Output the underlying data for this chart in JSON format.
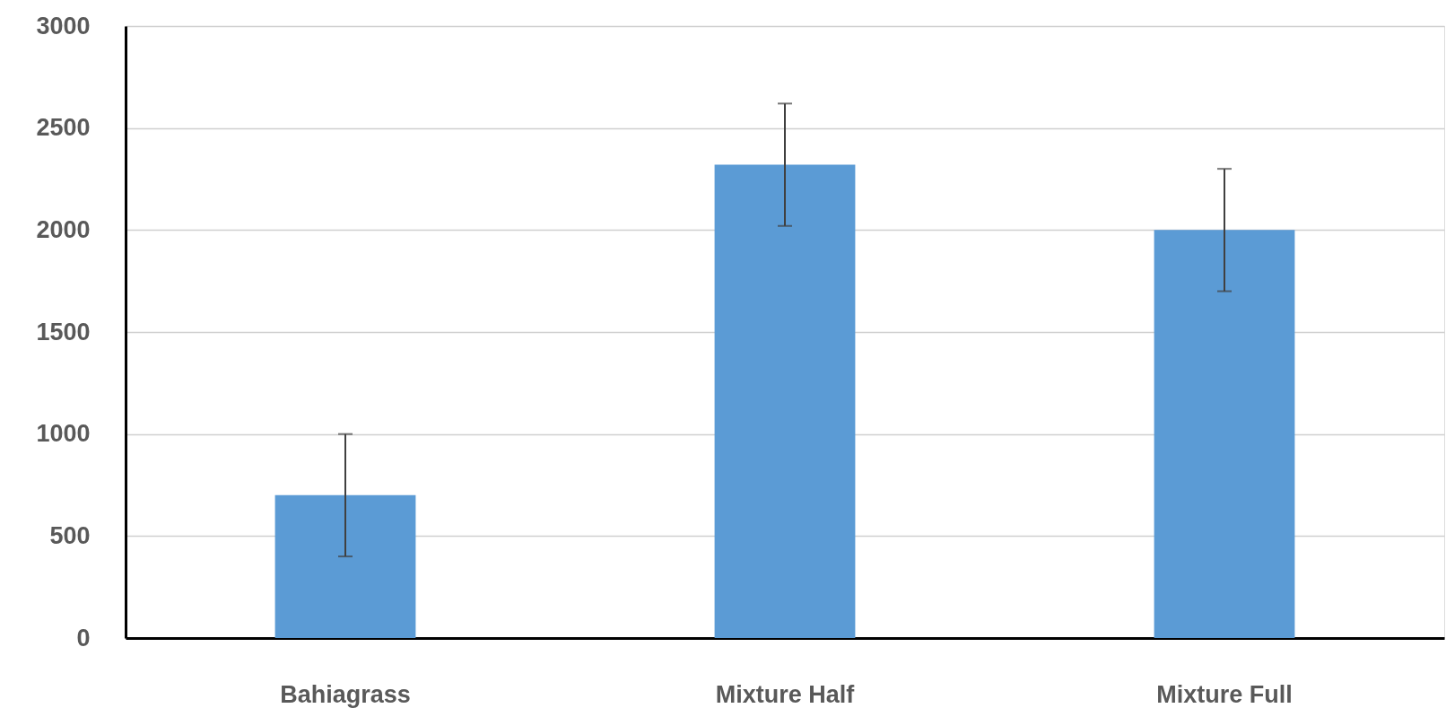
{
  "chart_data": {
    "type": "bar",
    "categories": [
      "Bahiagrass",
      "Mixture Half",
      "Mixture Full"
    ],
    "values": [
      700,
      2320,
      2000
    ],
    "errors": [
      300,
      300,
      300
    ],
    "color": "#5b9bd5",
    "ylim": [
      0,
      3000
    ],
    "yticks": [
      0,
      500,
      1000,
      1500,
      2000,
      2500,
      3000
    ],
    "grid": "y"
  }
}
